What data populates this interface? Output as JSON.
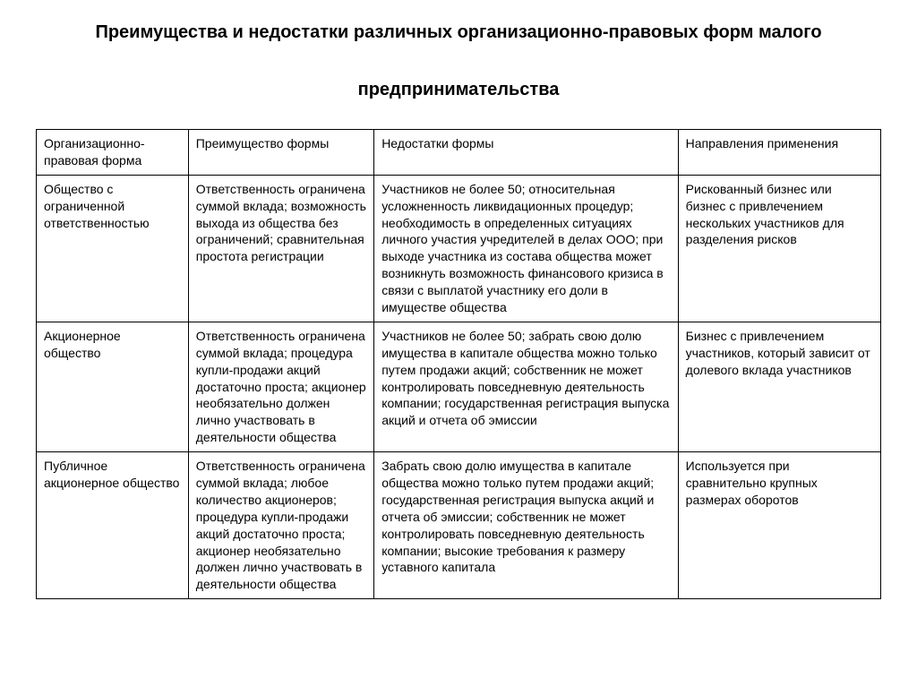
{
  "title_line1": "Преимущества и недостатки различных организационно-правовых форм малого",
  "title_line2": "предпринимательства",
  "table": {
    "columns": [
      "Организационно-правовая форма",
      "Преимущество формы",
      "Недостатки формы",
      "Направления применения"
    ],
    "rows": [
      [
        "Общество с ограниченной ответственностью",
        "Ответственность огра­ничена суммой вклада; возможность выхода из общества без ограничений; сравнительная простота регистрации",
        "Участников не более 50; относительная усложненность ликвидационных процедур; необходимость в определенных ситуациях личного участия учредителей в делах ООО; при выходе участника из состава общества может возникнуть возможность финансового кризиса в связи с выплатой участнику его доли в имуществе общества",
        "Рискованный бизнес или бизнес с привлечением нескольких участников для разделения рисков"
      ],
      [
        "Акционерное общество",
        "Ответственность огра­ничена суммой вклада; процедура купли-продажи акций достаточно проста; акционер необязательно должен лично участвовать в деятельности общества",
        "Участников не более 50; забрать свою долю имущества в капитале общества можно только путем продажи акций; собственник не может контролировать повседневную деятельность компании; государственная регистрация выпуска акций и отчета об эмиссии",
        "Бизнес с привлечением участников, который зависит от долевого вклада участников"
      ],
      [
        "Публичное акционерное общество",
        "Ответственность огра­ничена суммой вклада; любое количество ак­ционеров; процедура купли-продажи акций достаточно проста; акционер необязательно должен лично участвовать в деятельности общества",
        "Забрать свою долю имущества в капитале общества можно только путем продажи акций; государственная регистрация выпуска акций и отчета об эмиссии; собственник не может контролировать повседневную деятельность компании; высокие требования к размеру уставного капитала",
        "Используется при сравнительно крупных размерах оборотов"
      ]
    ]
  }
}
